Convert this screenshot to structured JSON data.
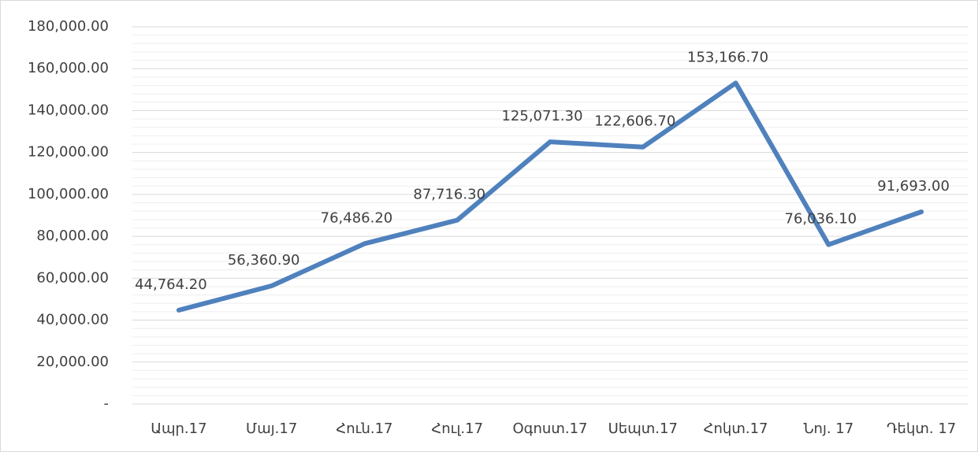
{
  "chart_data": {
    "type": "line",
    "categories": [
      "Ապր.17",
      "Մայ.17",
      "Հուն.17",
      "Հուլ.17",
      "Օգոստ.17",
      "Սեպտ.17",
      "Հոկտ.17",
      "Նոյ. 17",
      "Դեկտ. 17"
    ],
    "series": [
      {
        "color": "#4f81bd",
        "values": [
          44764.2,
          56360.9,
          76486.2,
          87716.3,
          125071.3,
          122606.7,
          153166.7,
          76036.1,
          91693.0
        ],
        "value_labels": [
          "44,764.20",
          "56,360.90",
          "76,486.20",
          "87,716.30",
          "125,071.30",
          "122,606.70",
          "153,166.70",
          "76,036.10",
          "91,693.00"
        ]
      }
    ],
    "ylim": [
      0,
      180000
    ],
    "yticks": [
      {
        "value": 0,
        "label": "-"
      },
      {
        "value": 20000,
        "label": "20,000.00"
      },
      {
        "value": 40000,
        "label": "40,000.00"
      },
      {
        "value": 60000,
        "label": "60,000.00"
      },
      {
        "value": 80000,
        "label": "80,000.00"
      },
      {
        "value": 100000,
        "label": "100,000.00"
      },
      {
        "value": 120000,
        "label": "120,000.00"
      },
      {
        "value": 140000,
        "label": "140,000.00"
      },
      {
        "value": 160000,
        "label": "160,000.00"
      },
      {
        "value": 180000,
        "label": "180,000.00"
      }
    ],
    "grid": true,
    "minor_grid_divisions": 5
  }
}
